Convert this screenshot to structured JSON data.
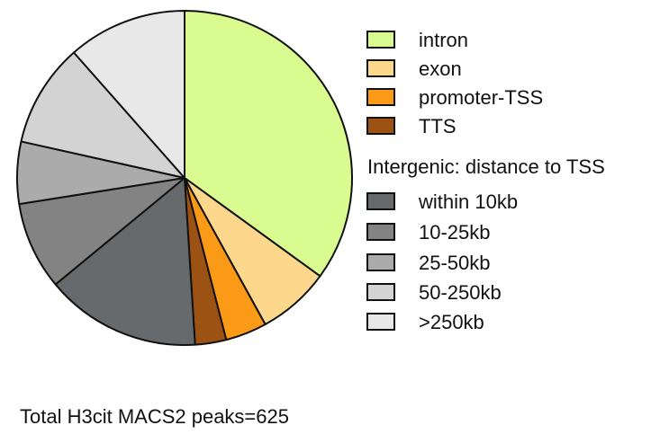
{
  "chart_data": {
    "type": "pie",
    "title": "",
    "footer": "Total H3cit MACS2 peaks=625",
    "legend_header": "Intergenic: distance to TSS",
    "legend_position": "right",
    "slices": [
      {
        "label": "intron",
        "value": 35.0,
        "color": "#d9fb8f"
      },
      {
        "label": "exon",
        "value": 7.0,
        "color": "#fdd88c"
      },
      {
        "label": "promoter-TSS",
        "value": 4.0,
        "color": "#fb9a17"
      },
      {
        "label": "TTS",
        "value": 3.0,
        "color": "#9b5213"
      },
      {
        "label": "within 10kb",
        "value": 15.0,
        "color": "#666a6d"
      },
      {
        "label": "10-25kb",
        "value": 8.5,
        "color": "#838383"
      },
      {
        "label": "25-50kb",
        "value": 6.0,
        "color": "#ababab"
      },
      {
        "label": "50-250kb",
        "value": 10.0,
        "color": "#d3d3d3"
      },
      {
        "label": ">250kb",
        "value": 11.5,
        "color": "#e8e8e8"
      }
    ]
  }
}
